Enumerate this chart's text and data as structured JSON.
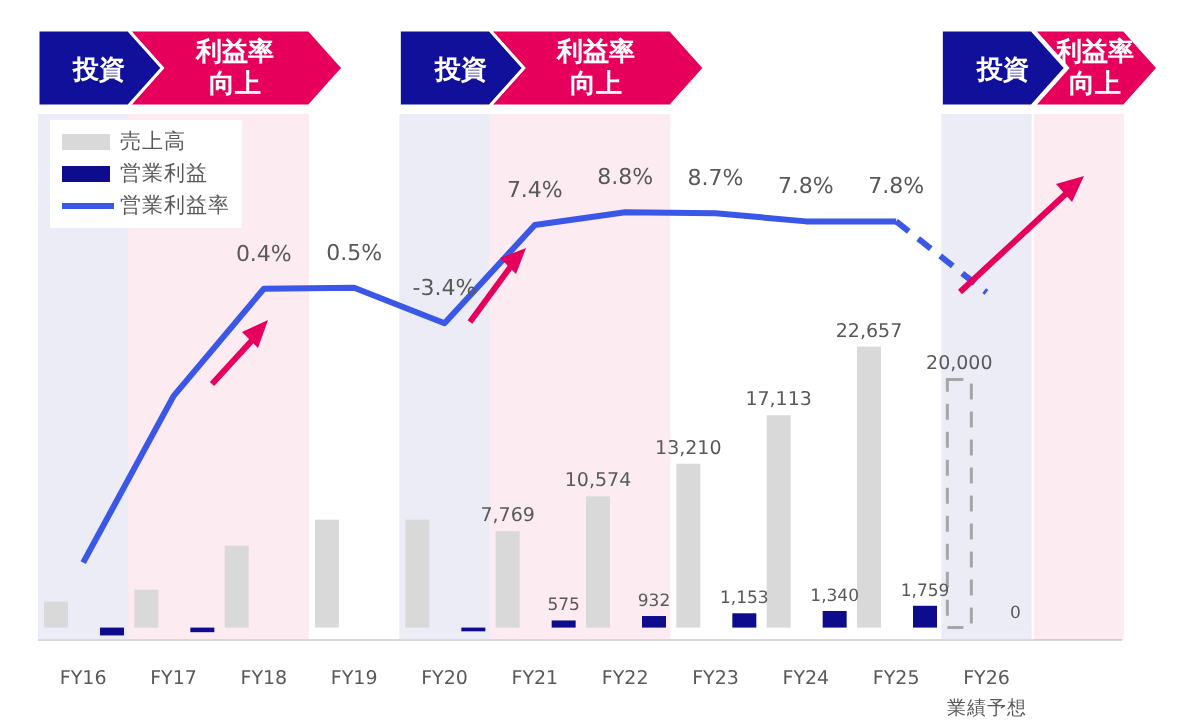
{
  "chart_data": {
    "type": "bar",
    "categories": [
      "FY16",
      "FY17",
      "FY18",
      "FY19",
      "FY20",
      "FY21",
      "FY22",
      "FY23",
      "FY24",
      "FY25",
      "FY26\n業績予想",
      null
    ],
    "ylim": [
      -1000,
      41400
    ],
    "y2lim": [
      -38.2,
      19.6
    ],
    "tick_labels": "x",
    "legend": "top left",
    "marker": "none",
    "series": [
      {
        "name": "売上高",
        "color": "#d9d9d9",
        "values": [
          2100,
          3050,
          6600,
          8700,
          8700,
          7769,
          10574,
          13210,
          17113,
          22657,
          null,
          null
        ],
        "value_labels": [
          null,
          null,
          null,
          null,
          null,
          "7,769",
          "10,574",
          "13,210",
          "17,113",
          "22,657",
          null,
          null
        ]
      },
      {
        "color": "#a6a6a6",
        "line_style": "dashed",
        "values": [
          null,
          null,
          null,
          null,
          null,
          null,
          null,
          null,
          null,
          null,
          20000,
          null
        ],
        "value_labels": [
          null,
          null,
          null,
          null,
          null,
          null,
          null,
          null,
          null,
          null,
          "20,000",
          null
        ]
      },
      {
        "name": "営業利益",
        "color": "#0c0c8c",
        "values": [
          -630,
          -370,
          null,
          null,
          -300,
          575,
          932,
          1153,
          1340,
          1759,
          0,
          null
        ],
        "value_labels": [
          null,
          null,
          null,
          null,
          null,
          "575",
          "932",
          "1,153",
          "1,340",
          "1,759",
          "0",
          null
        ]
      },
      {
        "name": "営業利益率",
        "type": "line",
        "axis": "y2",
        "color": "#3b57e8",
        "line_style": "solid",
        "values": [
          -29.7,
          -11.4,
          0.4,
          0.5,
          -3.4,
          7.4,
          8.8,
          8.7,
          7.8,
          7.8,
          null,
          null
        ],
        "value_labels": [
          null,
          null,
          "0.4%",
          "0.5%",
          "-3.4%",
          "7.4%",
          "8.8%",
          "8.7%",
          "7.8%",
          "7.8%",
          null,
          null
        ]
      },
      {
        "type": "line",
        "axis": "y2",
        "color": "#3b57e8",
        "line_style": "dashed",
        "values": [
          null,
          null,
          null,
          null,
          null,
          null,
          null,
          null,
          null,
          7.8,
          0,
          null
        ]
      }
    ],
    "bands": [
      {
        "axis": "x",
        "from": "FY16",
        "to": "FY16",
        "label": "投資",
        "color": "#10109a"
      },
      {
        "axis": "x",
        "from": "FY17",
        "to": "FY18",
        "label": "利益率向上",
        "color": "#e6005c"
      },
      {
        "axis": "x",
        "from": "FY20",
        "to": "FY20",
        "label": "投資",
        "color": "#10109a"
      },
      {
        "axis": "x",
        "from": "FY21",
        "to": "FY22",
        "label": "利益率向上",
        "color": "#e6005c"
      },
      {
        "axis": "x",
        "from": "FY26\n業績予想",
        "to": "FY26\n業績予想",
        "label": "投資",
        "color": "#10109a"
      }
    ],
    "annotations": [
      "利益率向上"
    ]
  }
}
